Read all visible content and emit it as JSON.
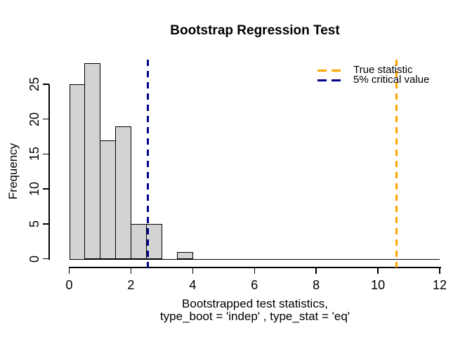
{
  "chart_data": {
    "type": "bar",
    "title": "Bootstrap Regression Test",
    "ylabel": "Frequency",
    "xlabel_line1": "Bootstrapped test statistics,",
    "xlabel_line2": "type_boot = 'indep' , type_stat = 'eq'",
    "bin_start": 0,
    "bin_width": 0.5,
    "counts": [
      25,
      28,
      17,
      19,
      5,
      5,
      0,
      1
    ],
    "bin_edges": [
      0,
      0.5,
      1,
      1.5,
      2,
      2.5,
      3,
      3.5,
      4
    ],
    "x_ticks": [
      0,
      2,
      4,
      6,
      8,
      10,
      12
    ],
    "y_ticks": [
      0,
      5,
      10,
      15,
      20,
      25
    ],
    "xlim": [
      0,
      12
    ],
    "ylim": [
      0,
      25
    ],
    "grid": false,
    "bar_fill": "#d3d3d3",
    "bar_border": "#000000",
    "vlines": [
      {
        "name": "true-statistic",
        "x": 10.59,
        "color": "#ffa500",
        "label": "True statistic"
      },
      {
        "name": "critical-value",
        "x": 2.55,
        "color": "#00008b",
        "label": "5% critical value"
      }
    ],
    "legend": {
      "position": "topright",
      "entries": [
        {
          "label": "True statistic",
          "color": "#ffa500",
          "style": "dashed"
        },
        {
          "label": "5% critical value",
          "color": "#00008b",
          "style": "dashed"
        }
      ]
    }
  }
}
